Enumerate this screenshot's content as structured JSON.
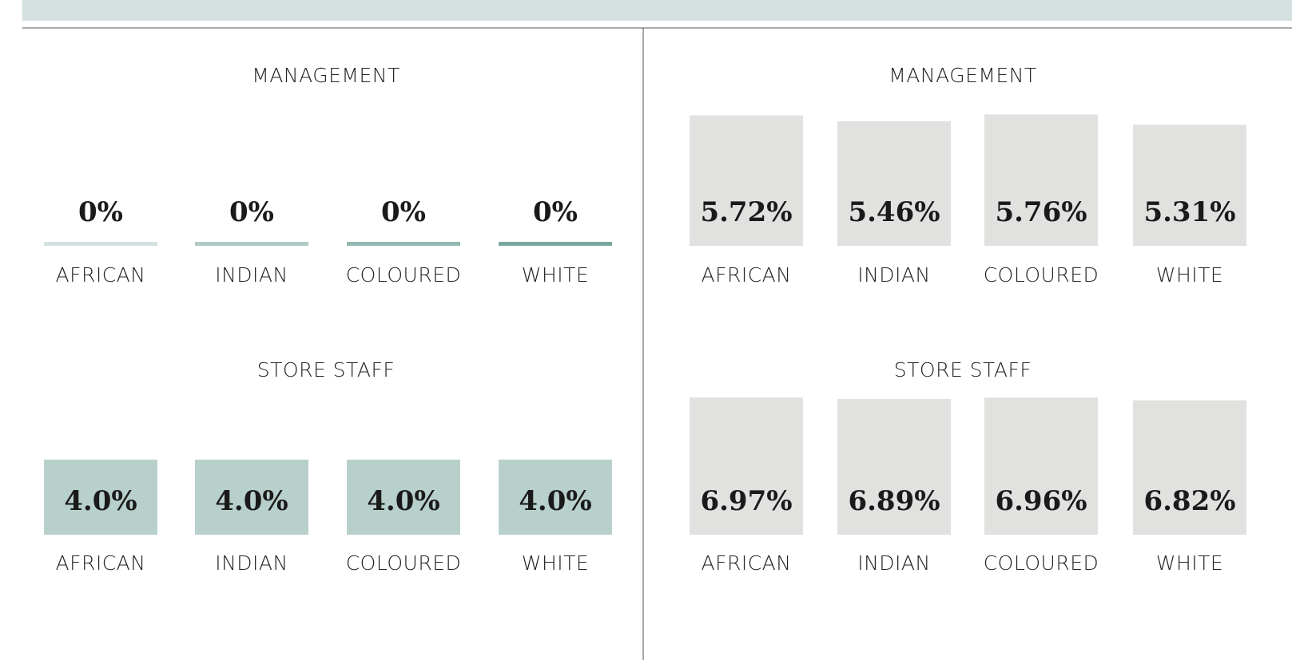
{
  "chart_data": [
    {
      "type": "bar",
      "title": "MANAGEMENT",
      "categories": [
        "AFRICAN",
        "INDIAN",
        "COLOURED",
        "WHITE"
      ],
      "values": [
        0,
        0,
        0,
        0
      ],
      "value_labels": [
        "0%",
        "0%",
        "0%",
        "0%"
      ],
      "colors": [
        "#d3e0df",
        "#b0cbc6",
        "#93b8b1",
        "#77a89e"
      ],
      "ylim": [
        0,
        8.5
      ]
    },
    {
      "type": "bar",
      "title": "STORE STAFF",
      "categories": [
        "AFRICAN",
        "INDIAN",
        "COLOURED",
        "WHITE"
      ],
      "values": [
        4.0,
        4.0,
        4.0,
        4.0
      ],
      "value_labels": [
        "4.0%",
        "4.0%",
        "4.0%",
        "4.0%"
      ],
      "colors": [
        "#b8d0cb",
        "#b8d0cb",
        "#b8d0cb",
        "#b8d0cb"
      ],
      "ylim": [
        0,
        8.5
      ]
    },
    {
      "type": "bar",
      "title": "MANAGEMENT",
      "categories": [
        "AFRICAN",
        "INDIAN",
        "COLOURED",
        "WHITE"
      ],
      "values": [
        5.72,
        5.46,
        5.76,
        5.31
      ],
      "value_labels": [
        "5.72%",
        "5.46%",
        "5.76%",
        "5.31%"
      ],
      "colors": [
        "#e1e1df",
        "#e1e1df",
        "#e1e1df",
        "#e1e1df"
      ],
      "ylim": [
        0,
        7
      ]
    },
    {
      "type": "bar",
      "title": "STORE STAFF",
      "categories": [
        "AFRICAN",
        "INDIAN",
        "COLOURED",
        "WHITE"
      ],
      "values": [
        6.97,
        6.89,
        6.96,
        6.82
      ],
      "value_labels": [
        "6.97%",
        "6.89%",
        "6.96%",
        "6.82%"
      ],
      "colors": [
        "#e1e1df",
        "#e1e1df",
        "#e1e1df",
        "#e1e1df"
      ],
      "ylim": [
        0,
        8.1
      ]
    }
  ]
}
